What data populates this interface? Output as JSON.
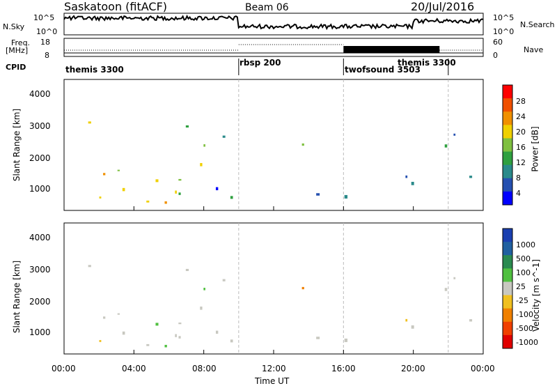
{
  "header": {
    "station": "Saskatoon (fitACF)",
    "beam": "Beam 06",
    "date": "20/Jul/2016"
  },
  "noise_panel": {
    "left_label": "N.Sky",
    "right_label": "N.Search",
    "left_ticks": [
      "10^5",
      "10^0"
    ],
    "right_ticks": [
      "10^5",
      "10^0"
    ]
  },
  "freq_panel": {
    "left_label_1": "Freq.",
    "left_label_2": "[MHz]",
    "right_label": "Nave",
    "left_ticks": [
      "18",
      "8"
    ],
    "right_ticks": [
      "60",
      "0"
    ]
  },
  "cpid_panel": {
    "label": "CPID",
    "segments": [
      {
        "name": "themis 3300",
        "start_hour": 0
      },
      {
        "name": "rbsp 200",
        "start_hour": 10
      },
      {
        "name": "twofsound 3503",
        "start_hour": 16
      },
      {
        "name": "themis 3300",
        "start_hour": 22
      }
    ]
  },
  "power_panel": {
    "ylabel": "Slant Range [km]",
    "yticks": [
      "4000",
      "3000",
      "2000",
      "1000"
    ],
    "colorbar_label": "Power [dB]",
    "colorbar_ticks": [
      "28",
      "24",
      "20",
      "16",
      "12",
      "8",
      "4"
    ],
    "colors": [
      "#0000ff",
      "#2550b0",
      "#2a8a8a",
      "#2fa040",
      "#7fc040",
      "#f0d000",
      "#f09000",
      "#f05000",
      "#ff0000"
    ]
  },
  "velocity_panel": {
    "ylabel": "Slant Range [km]",
    "yticks": [
      "4000",
      "3000",
      "2000",
      "1000"
    ],
    "colorbar_label": "Velocity [m s^-1]",
    "colorbar_ticks": [
      "1000",
      "500",
      "100",
      "25",
      "-25",
      "-100",
      "-500",
      "-1000"
    ],
    "colors": [
      "#1a3fb0",
      "#2060a0",
      "#2a8a50",
      "#50c040",
      "#c8c8c0",
      "#f0c020",
      "#f08000",
      "#f04000",
      "#e00000"
    ]
  },
  "xaxis": {
    "label": "Time UT",
    "ticks": [
      "00:00",
      "04:00",
      "08:00",
      "12:00",
      "16:00",
      "20:00",
      "00:00"
    ]
  },
  "chart_data": {
    "type": "heatmap",
    "title": "Saskatoon (fitACF) Beam 06 20/Jul/2016",
    "xlabel": "Time UT",
    "ylabel": "Slant Range [km]",
    "xlim": [
      0,
      24
    ],
    "ylim": [
      180,
      4500
    ],
    "power_db_range": [
      0,
      30
    ],
    "velocity_range": [
      -1000,
      1000
    ],
    "mode_changes_hours": [
      10,
      16,
      22
    ],
    "echo_regions": [
      {
        "t_start": 0,
        "t_end": 8,
        "r_min": 200,
        "r_max": 3500,
        "power_db": 16,
        "velocity": -25
      },
      {
        "t_start": 3,
        "t_end": 7.5,
        "r_min": 200,
        "r_max": 600,
        "power_db": 26,
        "velocity": 100
      },
      {
        "t_start": 5,
        "t_end": 9.5,
        "r_min": 2100,
        "r_max": 3000,
        "power_db": 14,
        "velocity": 0
      },
      {
        "t_start": 8,
        "t_end": 16,
        "r_min": 200,
        "r_max": 1000,
        "power_db": 8,
        "velocity": -25
      },
      {
        "t_start": 13,
        "t_end": 15,
        "r_min": 1700,
        "r_max": 2500,
        "power_db": 18,
        "velocity": -500
      },
      {
        "t_start": 16,
        "t_end": 22,
        "r_min": 300,
        "r_max": 1500,
        "power_db": 6,
        "velocity": 0
      },
      {
        "t_start": 21.5,
        "t_end": 24,
        "r_min": 1000,
        "r_max": 3500,
        "power_db": 6,
        "velocity": 0
      }
    ]
  }
}
